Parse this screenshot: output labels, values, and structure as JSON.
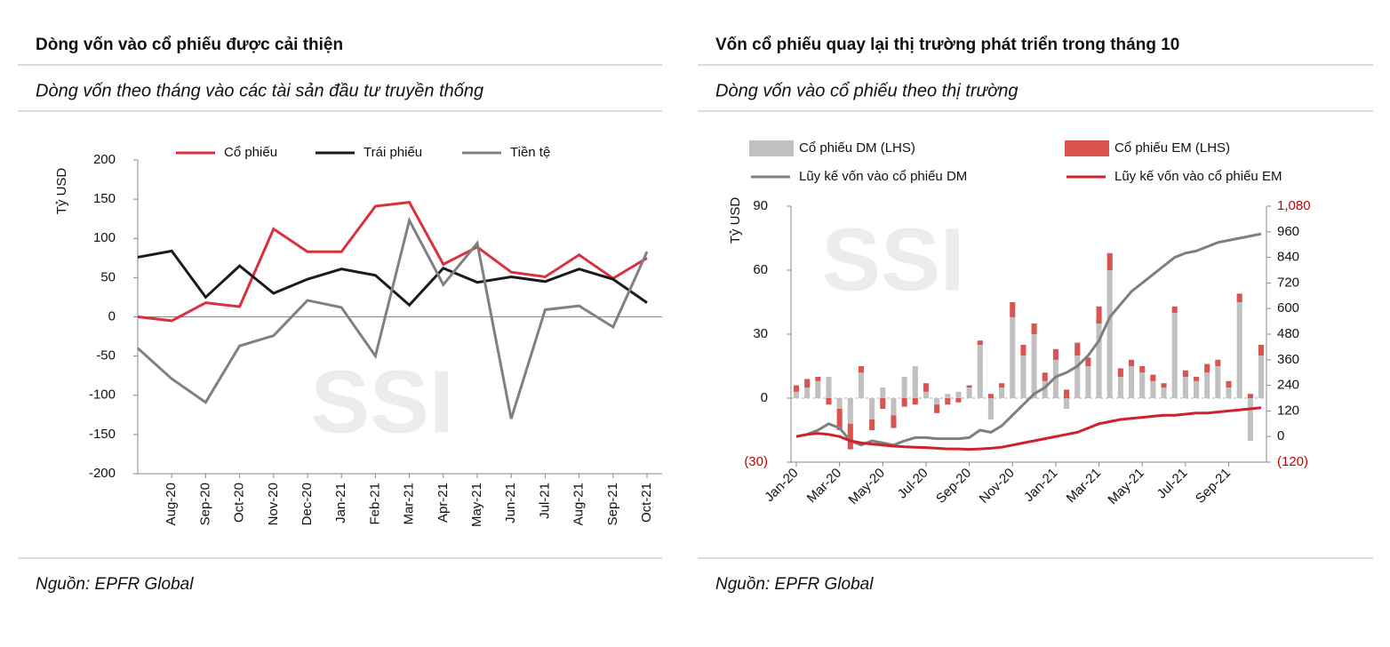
{
  "chart_data": [
    {
      "type": "line",
      "title": "Dòng vốn vào cổ phiếu được cải thiện",
      "subtitle": "Dòng vốn theo tháng vào các tài sản đầu tư truyền thống",
      "source": "Nguồn: EPFR Global",
      "watermark": "SSI",
      "y_label": "Tỷ USD",
      "categories": [
        null,
        "Aug-20",
        "Sep-20",
        "Oct-20",
        "Nov-20",
        "Dec-20",
        "Jan-21",
        "Feb-21",
        "Mar-21",
        "Apr-21",
        "May-21",
        "Jun-21",
        "Jul-21",
        "Aug-21",
        "Sep-21",
        "Oct-21"
      ],
      "series": [
        {
          "name": "Cổ phiếu",
          "color": "#d9303f",
          "values": [
            0,
            -5,
            18,
            13,
            112,
            83,
            83,
            141,
            146,
            67,
            89,
            57,
            51,
            79,
            49,
            75
          ]
        },
        {
          "name": "Trái phiếu",
          "color": "#1a1a1a",
          "values": [
            76,
            84,
            25,
            65,
            30,
            48,
            61,
            53,
            15,
            62,
            44,
            51,
            45,
            61,
            48,
            18
          ]
        },
        {
          "name": "Tiền tệ",
          "color": "#808080",
          "values": [
            -40,
            -79,
            -109,
            -37,
            -24,
            21,
            12,
            -50,
            123,
            41,
            94,
            -130,
            9,
            14,
            -13,
            83
          ]
        }
      ],
      "ylim": [
        -200,
        200
      ],
      "yticks": [
        -200,
        -150,
        -100,
        -50,
        0,
        50,
        100,
        150,
        200
      ],
      "legend": "top"
    },
    {
      "type": "combo",
      "title": "Vốn cổ phiếu quay lại thị trường phát triển trong tháng 10",
      "subtitle": "Dòng vốn vào cổ phiếu theo thị trường",
      "source": "Nguồn: EPFR Global",
      "watermark": "SSI",
      "y_label": "Tỷ USD",
      "stacked": true,
      "categories": [
        "Jan-20",
        null,
        null,
        null,
        "Mar-20",
        null,
        null,
        null,
        "May-20",
        null,
        null,
        null,
        "Jul-20",
        null,
        null,
        null,
        "Sep-20",
        null,
        null,
        null,
        "Nov-20",
        null,
        null,
        null,
        "Jan-21",
        null,
        null,
        null,
        "Mar-21",
        null,
        null,
        null,
        "May-21",
        null,
        null,
        null,
        "Jul-21",
        null,
        null,
        null,
        "Sep-21",
        null,
        null,
        null
      ],
      "series": [
        {
          "name": "Cổ phiếu DM (LHS)",
          "kind": "bar",
          "color": "#c0c0c0",
          "values": [
            3,
            5,
            8,
            10,
            -5,
            -12,
            12,
            -10,
            5,
            -8,
            10,
            15,
            3,
            -3,
            2,
            3,
            5,
            25,
            -10,
            5,
            38,
            20,
            30,
            8,
            18,
            -5,
            20,
            15,
            35,
            60,
            10,
            15,
            12,
            8,
            5,
            40,
            10,
            8,
            12,
            15,
            5,
            45,
            -20,
            20
          ]
        },
        {
          "name": "Cổ phiếu EM (LHS)",
          "kind": "bar",
          "color": "#d9534f",
          "values": [
            3,
            4,
            2,
            -3,
            -10,
            -12,
            3,
            -5,
            -5,
            -6,
            -4,
            -3,
            4,
            -4,
            -3,
            -2,
            1,
            2,
            2,
            2,
            7,
            5,
            5,
            4,
            5,
            4,
            6,
            4,
            8,
            8,
            4,
            3,
            3,
            3,
            2,
            3,
            3,
            2,
            4,
            3,
            3,
            4,
            2,
            5
          ]
        },
        {
          "name": "Lũy kế vốn vào cổ phiếu DM",
          "kind": "line",
          "axis": "y2",
          "color": "#7f7f7f",
          "values": [
            0,
            10,
            30,
            60,
            40,
            -20,
            -40,
            -20,
            -30,
            -40,
            -20,
            -5,
            -5,
            -10,
            -10,
            -10,
            -5,
            30,
            20,
            50,
            100,
            150,
            200,
            230,
            280,
            300,
            330,
            380,
            450,
            560,
            620,
            680,
            720,
            760,
            800,
            840,
            860,
            870,
            890,
            910,
            920,
            930,
            940,
            950
          ]
        },
        {
          "name": "Lũy kế vốn vào cổ phiếu EM",
          "kind": "line",
          "axis": "y2",
          "color": "#d0202e",
          "values": [
            0,
            10,
            15,
            10,
            0,
            -20,
            -30,
            -35,
            -40,
            -45,
            -48,
            -50,
            -52,
            -55,
            -58,
            -58,
            -60,
            -58,
            -55,
            -50,
            -40,
            -30,
            -20,
            -10,
            0,
            10,
            20,
            40,
            60,
            70,
            80,
            85,
            90,
            95,
            100,
            100,
            105,
            110,
            110,
            115,
            120,
            125,
            130,
            135
          ]
        }
      ],
      "ylim": [
        -30,
        90
      ],
      "yticks": [
        {
          "value": -30,
          "label": "(30)"
        },
        0,
        30,
        60,
        90
      ],
      "y2lim": [
        -120,
        1080
      ],
      "y2ticks": [
        {
          "value": -120,
          "label": "(120)"
        },
        0,
        120,
        240,
        360,
        480,
        600,
        720,
        840,
        960,
        {
          "value": 1080,
          "label": "1,080"
        }
      ],
      "legend": "top"
    }
  ]
}
